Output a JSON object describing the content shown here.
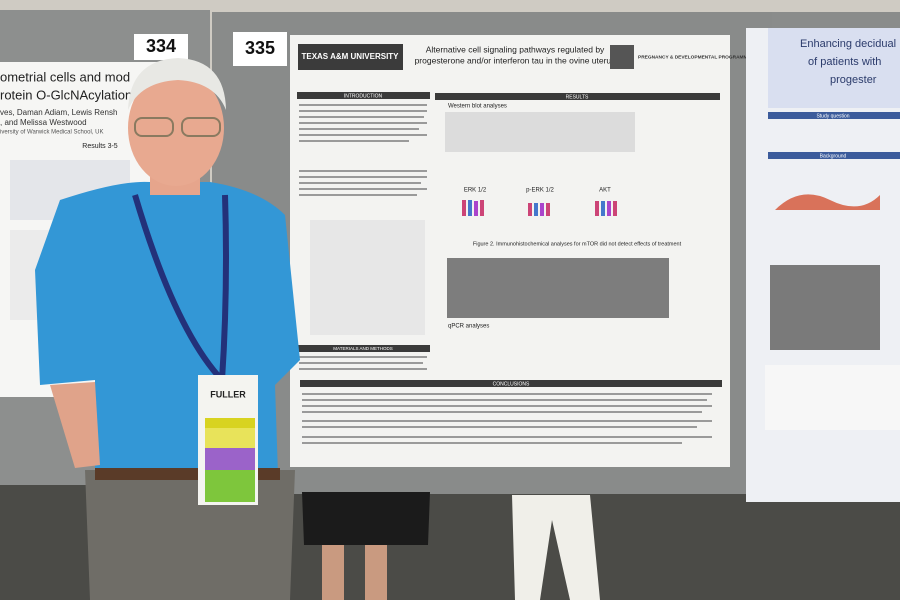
{
  "boards": [
    {
      "number": "334"
    },
    {
      "number": "335"
    }
  ],
  "left_poster": {
    "lines": [
      "ometrial cells and mod",
      "rotein O-GlcNAcylation",
      "ves, Daman Adiam, Lewis Rensh",
      ", and Melissa Westwood",
      "iversity of Warwick Medical School, UK"
    ],
    "section": "Results 3-5"
  },
  "center_poster": {
    "logo": "TEXAS A&M UNIVERSITY",
    "title_lines": [
      "Alternative cell signaling pathways regulated by",
      "progesterone and/or interferon tau in the ovine uterus"
    ],
    "program": "PREGNANCY & DEVELOPMENTAL PROGRAMMING",
    "sections": [
      "INTRODUCTION",
      "RESULTS",
      "MATERIALS AND METHODS",
      "CONCLUSIONS"
    ],
    "subheads": [
      "Western blot analyses",
      "qPCR analyses"
    ],
    "figure_caption": "Figure 2. Immunohistochemical analyses for mTOR did not detect effects of treatment",
    "chart_labels": [
      "ERK 1/2",
      "p-ERK 1/2",
      "AKT"
    ]
  },
  "right_poster": {
    "title_lines": [
      "Enhancing decidual",
      "of patients with",
      "progester"
    ],
    "sections": [
      "Study question",
      "Background"
    ]
  },
  "badge": {
    "name": "FULLER"
  }
}
